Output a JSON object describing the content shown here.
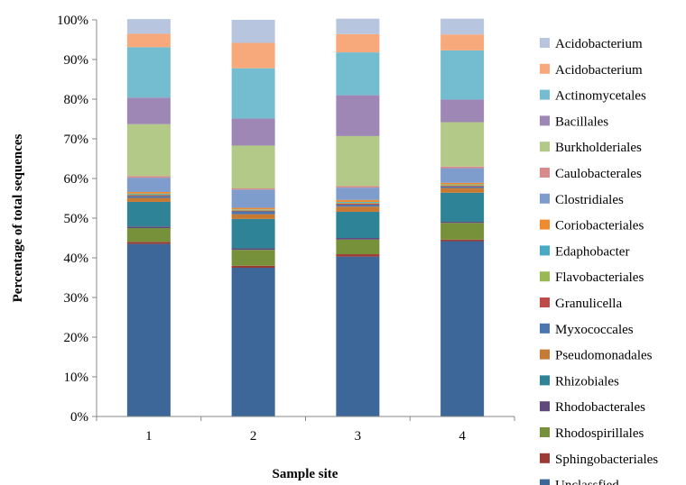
{
  "chart_data": {
    "type": "bar",
    "stacked": true,
    "title": "",
    "xlabel": "Sample site",
    "ylabel": "Percentage of total sequences",
    "categories": [
      "1",
      "2",
      "3",
      "4"
    ],
    "ylim": [
      0,
      100
    ],
    "yticks": [
      "0%",
      "10%",
      "20%",
      "30%",
      "40%",
      "50%",
      "60%",
      "70%",
      "80%",
      "90%",
      "100%"
    ],
    "legend_position": "right",
    "grid": false,
    "series": [
      {
        "name": "Unclassfied",
        "color": "#3d6699",
        "values": [
          43.5,
          37.5,
          40.3,
          44.2
        ]
      },
      {
        "name": "Sphingobacteriales",
        "color": "#9c3b36",
        "values": [
          0.5,
          0.5,
          0.6,
          0.4
        ]
      },
      {
        "name": "Rhodospirillales",
        "color": "#77913a",
        "values": [
          3.5,
          4.0,
          3.7,
          4.2
        ]
      },
      {
        "name": "Rhodobacterales",
        "color": "#5e4a7c",
        "values": [
          0.4,
          0.4,
          0.4,
          0.3
        ]
      },
      {
        "name": "Rhizobiales",
        "color": "#2e8397",
        "values": [
          6.2,
          7.4,
          6.6,
          7.3
        ]
      },
      {
        "name": "Pseudomonadales",
        "color": "#c77a33",
        "values": [
          1.0,
          1.2,
          1.3,
          1.2
        ]
      },
      {
        "name": "Myxococcales",
        "color": "#4a77b0",
        "values": [
          0.5,
          0.7,
          0.5,
          0.4
        ]
      },
      {
        "name": "Granulicella",
        "color": "#be4b48",
        "values": [
          0.2,
          0.2,
          0.3,
          0.2
        ]
      },
      {
        "name": "Flavobacteriales",
        "color": "#98b954",
        "values": [
          0.2,
          0.2,
          0.2,
          0.2
        ]
      },
      {
        "name": "Edaphobacter",
        "color": "#46aac5",
        "values": [
          0.2,
          0.1,
          0.2,
          0.1
        ]
      },
      {
        "name": "Coriobacteriales",
        "color": "#f08a2e",
        "values": [
          0.4,
          0.4,
          0.5,
          0.4
        ]
      },
      {
        "name": "Clostridiales",
        "color": "#7e9ccc",
        "values": [
          3.6,
          4.6,
          3.1,
          3.7
        ]
      },
      {
        "name": "Caulobacterales",
        "color": "#d98a8a",
        "values": [
          0.4,
          0.3,
          0.4,
          0.4
        ]
      },
      {
        "name": "Burkholderiales",
        "color": "#b3c987",
        "values": [
          13.1,
          10.8,
          12.6,
          11.2
        ]
      },
      {
        "name": "Bacillales",
        "color": "#9e87b5",
        "values": [
          6.7,
          6.8,
          10.3,
          5.7
        ]
      },
      {
        "name": "Actinomycetales",
        "color": "#74bdd1",
        "values": [
          12.7,
          12.7,
          10.8,
          12.4
        ]
      },
      {
        "name": "Acidobacterium",
        "color": "#f8a97b",
        "values": [
          3.4,
          6.4,
          4.6,
          4.0
        ]
      },
      {
        "name": "Acidobacterium",
        "color": "#b7c5df",
        "values": [
          3.7,
          5.8,
          3.9,
          4.0
        ]
      }
    ]
  }
}
